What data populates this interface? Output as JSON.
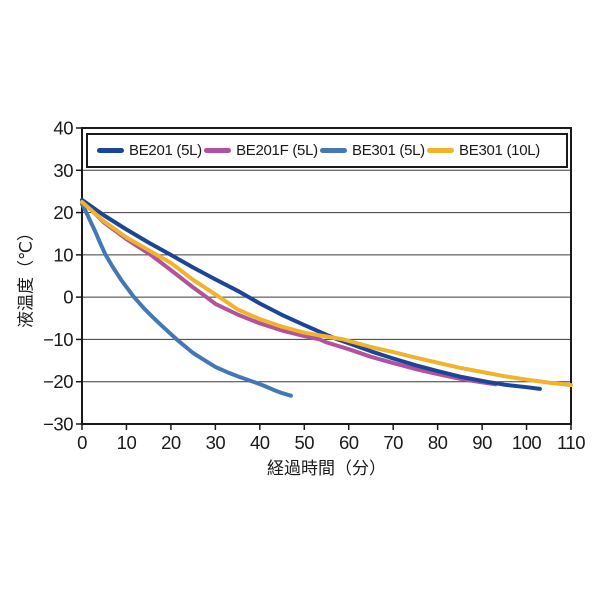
{
  "figure": {
    "background": "#ffffff"
  },
  "chart_data": {
    "type": "line",
    "title": "",
    "xlabel": "経過時間（分）",
    "ylabel": "液温度（℃）",
    "xlim": [
      0,
      110
    ],
    "ylim": [
      -30,
      40
    ],
    "x_ticks": [
      0,
      10,
      20,
      30,
      40,
      50,
      60,
      70,
      80,
      90,
      100,
      110
    ],
    "x_tick_labels": [
      "0",
      "10",
      "20",
      "30",
      "40",
      "50",
      "60",
      "70",
      "80",
      "90",
      "100",
      "110"
    ],
    "y_ticks": [
      40,
      30,
      20,
      10,
      0,
      -10,
      -20,
      -30
    ],
    "y_tick_labels": [
      "40",
      "30",
      "20",
      "10",
      "0",
      "−10",
      "−20",
      "−30"
    ],
    "grid": "horizontal-only",
    "grid_color": "#3c3c3c",
    "axis_color": "#1a1a1a",
    "legend_position": "top-inside",
    "series": [
      {
        "name": "BE201 (5L)",
        "color": "#1c4499",
        "points": [
          [
            0,
            23
          ],
          [
            5,
            19.3
          ],
          [
            10,
            16
          ],
          [
            15,
            12.9
          ],
          [
            20,
            10
          ],
          [
            25,
            7
          ],
          [
            30,
            4.2
          ],
          [
            35,
            1.5
          ],
          [
            37.5,
            0
          ],
          [
            40,
            -1.5
          ],
          [
            45,
            -4.2
          ],
          [
            50,
            -6.6
          ],
          [
            55,
            -8.9
          ],
          [
            57.5,
            -10
          ],
          [
            60,
            -10.9
          ],
          [
            65,
            -12.8
          ],
          [
            70,
            -14.5
          ],
          [
            75,
            -16.1
          ],
          [
            80,
            -17.5
          ],
          [
            85,
            -18.8
          ],
          [
            91,
            -20
          ],
          [
            95,
            -20.7
          ],
          [
            100,
            -21.3
          ],
          [
            103,
            -21.7
          ]
        ]
      },
      {
        "name": "BE201F (5L)",
        "color": "#b1519f",
        "points": [
          [
            0,
            22.8
          ],
          [
            5,
            17.6
          ],
          [
            10,
            13.7
          ],
          [
            15.5,
            10
          ],
          [
            20,
            6.4
          ],
          [
            25,
            2.3
          ],
          [
            28,
            0
          ],
          [
            30,
            -1.6
          ],
          [
            35,
            -4.1
          ],
          [
            40,
            -6.2
          ],
          [
            45,
            -7.9
          ],
          [
            50,
            -9.2
          ],
          [
            53.5,
            -10
          ],
          [
            55,
            -10.7
          ],
          [
            60,
            -12.3
          ],
          [
            65,
            -14.1
          ],
          [
            70,
            -15.6
          ],
          [
            75,
            -17
          ],
          [
            80,
            -18.2
          ],
          [
            85,
            -19.3
          ],
          [
            89,
            -20
          ],
          [
            93,
            -20.6
          ]
        ]
      },
      {
        "name": "BE301 (5L)",
        "color": "#4478b5",
        "points": [
          [
            0,
            22
          ],
          [
            1,
            20
          ],
          [
            2,
            17.7
          ],
          [
            3,
            15.5
          ],
          [
            4,
            13
          ],
          [
            5.3,
            10
          ],
          [
            7,
            7
          ],
          [
            9,
            3.8
          ],
          [
            11.7,
            0
          ],
          [
            14,
            -2.7
          ],
          [
            16,
            -4.8
          ],
          [
            18,
            -6.8
          ],
          [
            21.3,
            -10
          ],
          [
            25,
            -13.2
          ],
          [
            28,
            -15.2
          ],
          [
            30,
            -16.5
          ],
          [
            33,
            -17.9
          ],
          [
            35,
            -18.7
          ],
          [
            38.5,
            -20
          ],
          [
            41,
            -21
          ],
          [
            43,
            -21.9
          ],
          [
            45,
            -22.7
          ],
          [
            47,
            -23.3
          ]
        ]
      },
      {
        "name": "BE301 (10L)",
        "color": "#f0b32a",
        "points": [
          [
            0,
            22.5
          ],
          [
            5,
            17.9
          ],
          [
            10,
            14.1
          ],
          [
            15,
            11.1
          ],
          [
            16.8,
            10
          ],
          [
            20,
            8.1
          ],
          [
            25,
            4.1
          ],
          [
            30.9,
            0
          ],
          [
            35,
            -2.9
          ],
          [
            40,
            -5.2
          ],
          [
            45,
            -7
          ],
          [
            50,
            -8.4
          ],
          [
            55,
            -9.3
          ],
          [
            58.8,
            -10
          ],
          [
            65,
            -11.8
          ],
          [
            70,
            -13
          ],
          [
            75,
            -14.3
          ],
          [
            80,
            -15.5
          ],
          [
            85,
            -16.7
          ],
          [
            90,
            -17.7
          ],
          [
            95,
            -18.7
          ],
          [
            100,
            -19.5
          ],
          [
            105,
            -20.2
          ],
          [
            110,
            -20.8
          ]
        ]
      }
    ]
  }
}
